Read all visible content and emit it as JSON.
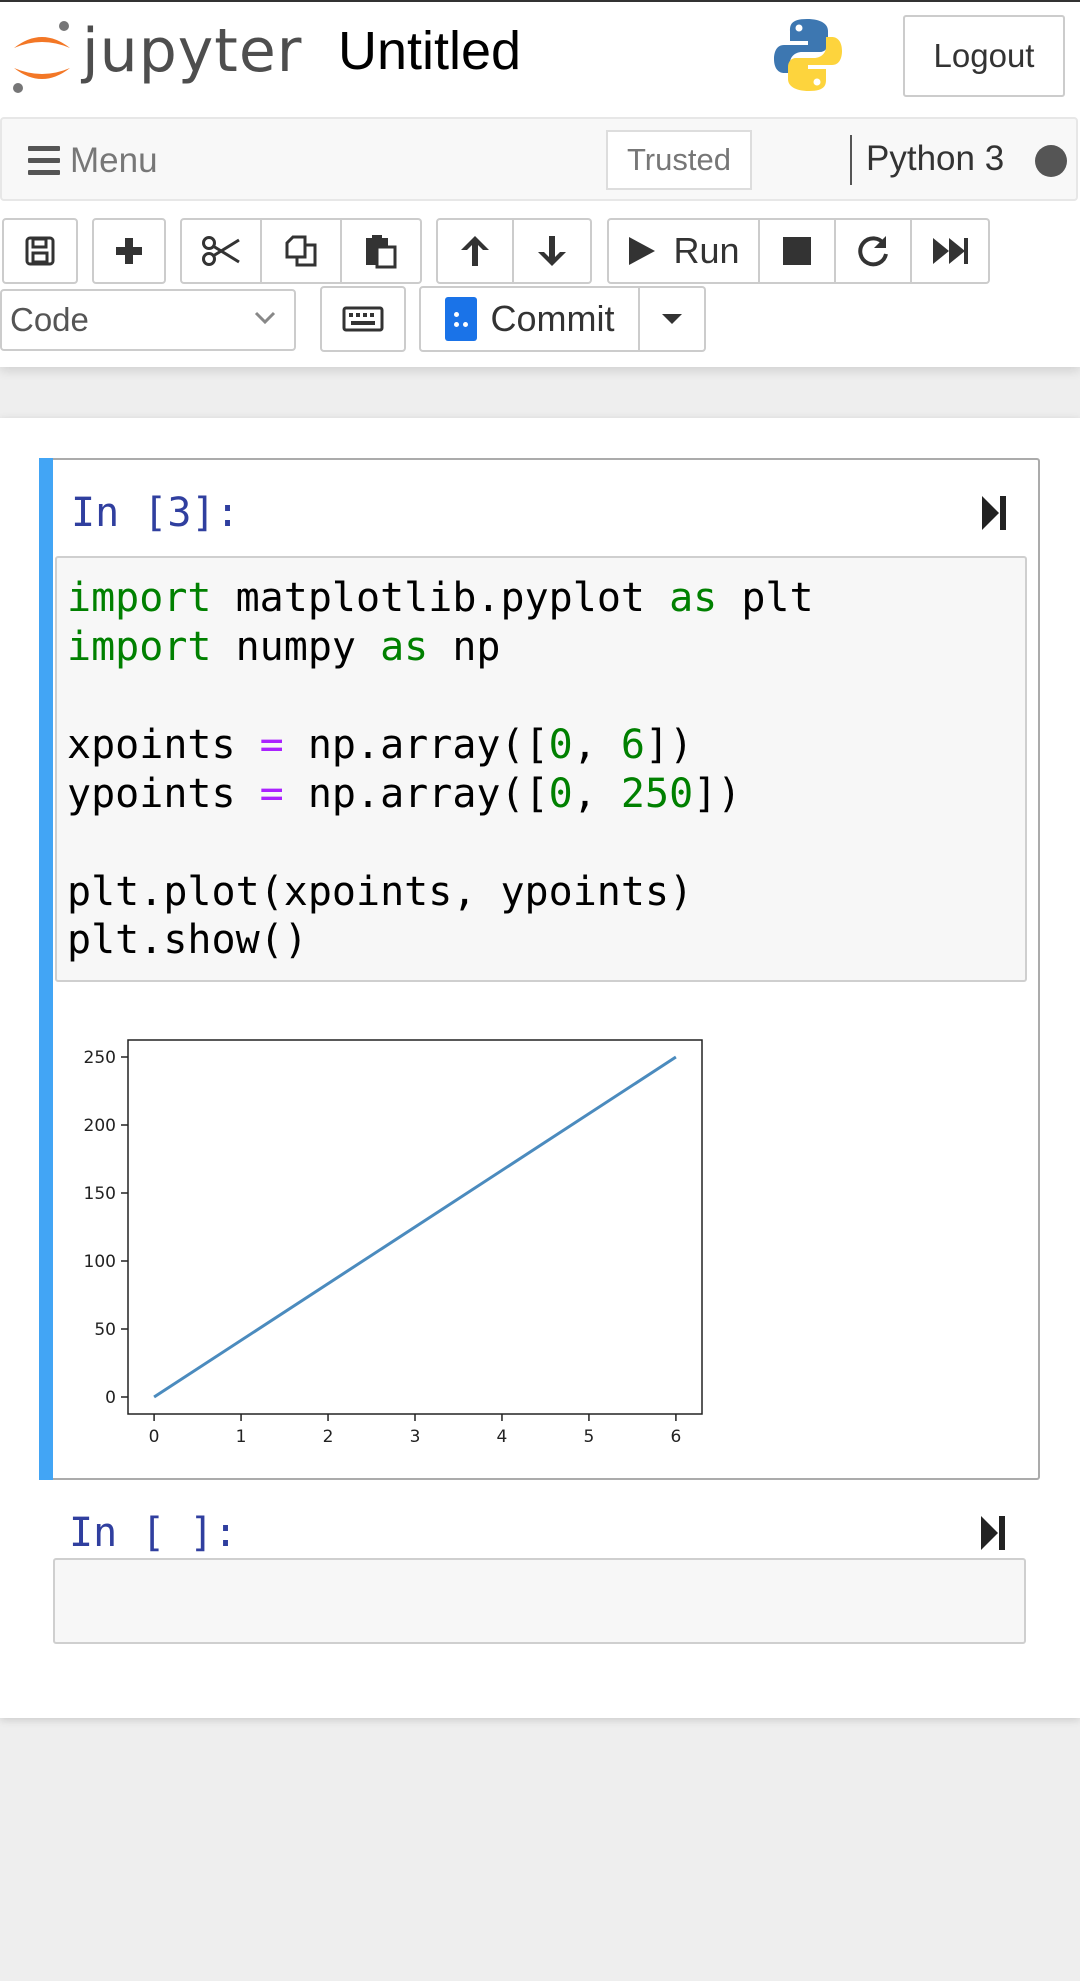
{
  "header": {
    "logo_text": "jupyter",
    "notebook_title": "Untitled",
    "logout_label": "Logout",
    "python_logo_icon": "python-logo-icon"
  },
  "menubar": {
    "menu_label": "Menu",
    "trusted_label": "Trusted",
    "kernel_name": "Python 3"
  },
  "toolbar": {
    "buttons": [
      "save-icon",
      "plus-icon",
      "cut-icon",
      "copy-icon",
      "paste-icon",
      "arrow-up-icon",
      "arrow-down-icon",
      "run-icon",
      "stop-icon",
      "restart-icon",
      "fast-forward-icon"
    ],
    "run_label": "Run",
    "cell_type": "Code",
    "commit_label": "Commit"
  },
  "cells": [
    {
      "prompt": "In [3]:",
      "code": [
        "import matplotlib.pyplot as plt",
        "import numpy as np",
        "",
        "xpoints = np.array([0, 6])",
        "ypoints = np.array([0, 250])",
        "",
        "plt.plot(xpoints, ypoints)",
        "plt.show()"
      ],
      "code_tokens": {
        "l1": {
          "kw1": "import",
          "mod": " matplotlib.pyplot ",
          "kw2": "as",
          "alias": " plt"
        },
        "l2": {
          "kw1": "import",
          "mod": " numpy ",
          "kw2": "as",
          "alias": " np"
        },
        "l4": {
          "var": "xpoints ",
          "eq": "=",
          "a": " np.array([",
          "n1": "0",
          "c": ", ",
          "n2": "6",
          "b": "])"
        },
        "l5": {
          "var": "ypoints ",
          "eq": "=",
          "a": " np.array([",
          "n1": "0",
          "c": ", ",
          "n2": "250",
          "b": "])"
        },
        "l7": "plt.plot(xpoints, ypoints)",
        "l8": "plt.show()"
      }
    },
    {
      "prompt": "In [ ]:",
      "code": []
    }
  ],
  "chart_data": {
    "type": "line",
    "x": [
      0,
      6
    ],
    "series": [
      {
        "values": [
          0,
          250
        ],
        "color": "#4b8bbe"
      }
    ],
    "xticks": [
      "0",
      "1",
      "2",
      "3",
      "4",
      "5",
      "6"
    ],
    "yticks": [
      "0",
      "50",
      "100",
      "150",
      "200",
      "250"
    ],
    "xlim": [
      -0.3,
      6.3
    ],
    "ylim": [
      -12.5,
      262.5
    ],
    "grid": false,
    "title": "",
    "xlabel": "",
    "ylabel": ""
  }
}
